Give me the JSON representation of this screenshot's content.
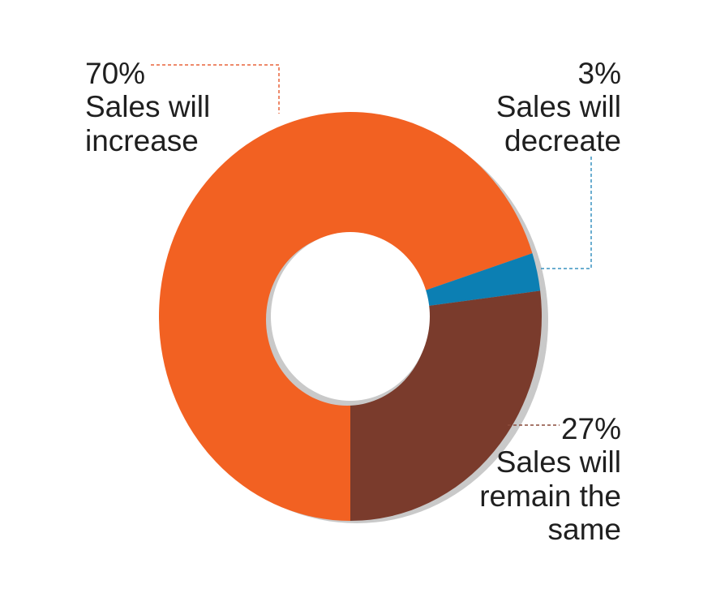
{
  "chart_data": {
    "type": "pie",
    "donut": true,
    "title": "",
    "slices": [
      {
        "value": 70,
        "percent_label": "70%",
        "label_lines": [
          "Sales will",
          "increase"
        ],
        "color": "#f26122"
      },
      {
        "value": 3,
        "percent_label": "3%",
        "label_lines": [
          "Sales will",
          "decreate"
        ],
        "color": "#0c7fb3"
      },
      {
        "value": 27,
        "percent_label": "27%",
        "label_lines": [
          "Sales will",
          "remain the",
          "same"
        ],
        "color": "#7a3b2c"
      }
    ],
    "leader_colors": {
      "increase": "#e8643a",
      "decrease": "#3a93c0",
      "same": "#8a4a3a"
    }
  }
}
